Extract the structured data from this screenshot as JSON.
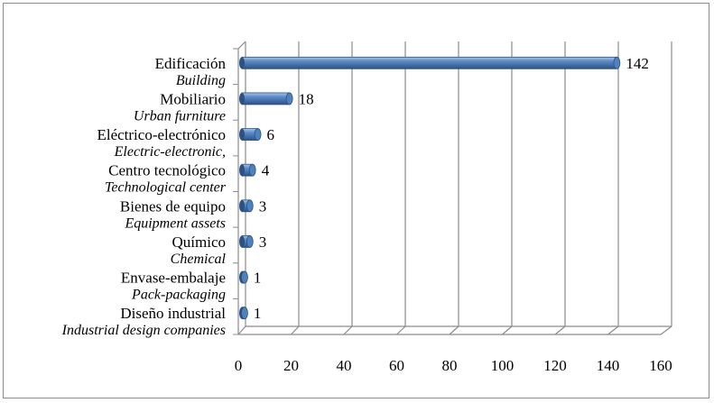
{
  "chart_data": {
    "type": "bar",
    "orientation": "horizontal",
    "style": "3d-cylinder",
    "categories": [
      {
        "label": "Edificación",
        "sublabel": "Building"
      },
      {
        "label": "Mobiliario",
        "sublabel": "Urban furniture"
      },
      {
        "label": "Eléctrico-electrónico",
        "sublabel": "Electric-electronic,"
      },
      {
        "label": "Centro tecnológico",
        "sublabel": "Technological center"
      },
      {
        "label": "Bienes de equipo",
        "sublabel": "Equipment assets"
      },
      {
        "label": "Químico",
        "sublabel": "Chemical"
      },
      {
        "label": "Envase-embalaje",
        "sublabel": "Pack-packaging"
      },
      {
        "label": "Diseño industrial",
        "sublabel": "Industrial design companies"
      }
    ],
    "values": [
      142,
      18,
      6,
      4,
      3,
      3,
      1,
      1
    ],
    "xlim": [
      0,
      160
    ],
    "xticks": [
      "0",
      "20",
      "40",
      "60",
      "80",
      "100",
      "120",
      "140",
      "160"
    ],
    "grid": true,
    "colors": {
      "bar": "#4f81bd",
      "bar_dark": "#2c5183",
      "bar_light": "#a9c4e6",
      "grid": "#8c8c8c"
    }
  }
}
